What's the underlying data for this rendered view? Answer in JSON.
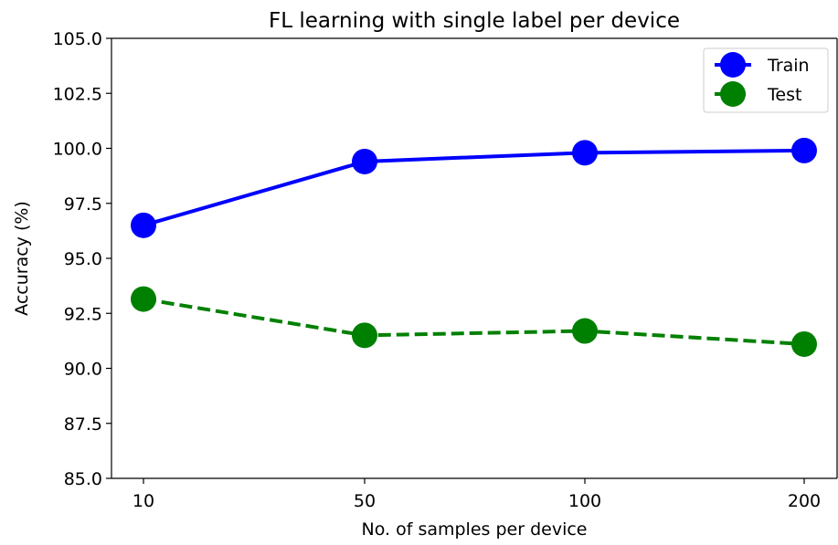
{
  "chart_data": {
    "type": "line",
    "title": "FL learning with single label per device",
    "xlabel": "No. of samples per device",
    "ylabel": "Accuracy (%)",
    "categories": [
      "10",
      "50",
      "100",
      "200"
    ],
    "ylim": [
      85.0,
      105.0
    ],
    "yticks": [
      "85.0",
      "87.5",
      "90.0",
      "92.5",
      "95.0",
      "97.5",
      "100.0",
      "102.5",
      "105.0"
    ],
    "grid": false,
    "legend": "top-right",
    "series": [
      {
        "name": "Train",
        "values": [
          96.5,
          99.4,
          99.8,
          99.9
        ],
        "color": "#0000ff",
        "linestyle": "solid"
      },
      {
        "name": "Test",
        "values": [
          93.15,
          91.5,
          91.7,
          91.1
        ],
        "color": "#008000",
        "linestyle": "dashed"
      }
    ]
  }
}
